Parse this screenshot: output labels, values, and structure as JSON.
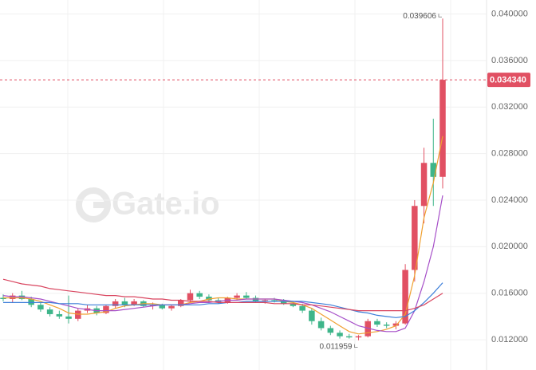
{
  "chart_data": {
    "type": "candlestick",
    "watermark": "Gate.io",
    "up_color": "#e15063",
    "down_color": "#3eb58a",
    "ylim": [
      0.0094,
      0.0412
    ],
    "yticks": [
      {
        "value": 0.012,
        "label": "0.012000"
      },
      {
        "value": 0.016,
        "label": "0.016000"
      },
      {
        "value": 0.02,
        "label": "0.020000"
      },
      {
        "value": 0.024,
        "label": "0.024000"
      },
      {
        "value": 0.028,
        "label": "0.028000"
      },
      {
        "value": 0.032,
        "label": "0.032000"
      },
      {
        "value": 0.036,
        "label": "0.036000"
      },
      {
        "value": 0.04,
        "label": "0.040000"
      }
    ],
    "grid": true,
    "last_price": {
      "value": 0.03434,
      "label": "0.034340"
    },
    "annotations": [
      {
        "value": 0.039606,
        "label": "0.039606",
        "index": 47
      },
      {
        "value": 0.011959,
        "label": "0.011959",
        "index": 38
      }
    ],
    "candles": [
      [
        0.0156,
        0.0159,
        0.0153,
        0.0155
      ],
      [
        0.0155,
        0.016,
        0.0152,
        0.0158
      ],
      [
        0.0158,
        0.0162,
        0.0154,
        0.0155
      ],
      [
        0.0155,
        0.0157,
        0.0148,
        0.015
      ],
      [
        0.015,
        0.0152,
        0.0144,
        0.0146
      ],
      [
        0.0146,
        0.0148,
        0.014,
        0.0142
      ],
      [
        0.0142,
        0.0145,
        0.0138,
        0.014
      ],
      [
        0.014,
        0.0158,
        0.0134,
        0.0138
      ],
      [
        0.0138,
        0.0147,
        0.0136,
        0.0145
      ],
      [
        0.0145,
        0.015,
        0.0143,
        0.0147
      ],
      [
        0.0147,
        0.0149,
        0.0141,
        0.0143
      ],
      [
        0.0143,
        0.015,
        0.0142,
        0.0149
      ],
      [
        0.0149,
        0.0155,
        0.0147,
        0.0153
      ],
      [
        0.0153,
        0.0156,
        0.0148,
        0.015
      ],
      [
        0.015,
        0.0155,
        0.0149,
        0.0153
      ],
      [
        0.0153,
        0.0154,
        0.0148,
        0.0149
      ],
      [
        0.0149,
        0.0152,
        0.0146,
        0.015
      ],
      [
        0.015,
        0.0151,
        0.0146,
        0.0147
      ],
      [
        0.0147,
        0.015,
        0.0145,
        0.0149
      ],
      [
        0.0149,
        0.0155,
        0.0148,
        0.0154
      ],
      [
        0.0154,
        0.0163,
        0.0152,
        0.016
      ],
      [
        0.016,
        0.0162,
        0.0155,
        0.0157
      ],
      [
        0.0157,
        0.0159,
        0.0152,
        0.0154
      ],
      [
        0.0154,
        0.0156,
        0.0151,
        0.0152
      ],
      [
        0.0152,
        0.0157,
        0.0151,
        0.0156
      ],
      [
        0.0156,
        0.016,
        0.0154,
        0.0158
      ],
      [
        0.0158,
        0.0161,
        0.0155,
        0.0156
      ],
      [
        0.0156,
        0.0158,
        0.0152,
        0.0153
      ],
      [
        0.0153,
        0.0155,
        0.0151,
        0.0154
      ],
      [
        0.0154,
        0.0156,
        0.0152,
        0.0153
      ],
      [
        0.0153,
        0.0155,
        0.015,
        0.0151
      ],
      [
        0.0151,
        0.0153,
        0.0148,
        0.0149
      ],
      [
        0.0149,
        0.0151,
        0.0143,
        0.0145
      ],
      [
        0.0145,
        0.0147,
        0.0133,
        0.0136
      ],
      [
        0.0136,
        0.0139,
        0.0128,
        0.013
      ],
      [
        0.013,
        0.0132,
        0.0124,
        0.0126
      ],
      [
        0.0126,
        0.0128,
        0.0121,
        0.0123
      ],
      [
        0.0123,
        0.0125,
        0.0121,
        0.0122
      ],
      [
        0.0122,
        0.0124,
        0.011959,
        0.0123
      ],
      [
        0.0123,
        0.0138,
        0.0122,
        0.0136
      ],
      [
        0.0136,
        0.0138,
        0.0131,
        0.0133
      ],
      [
        0.0133,
        0.0135,
        0.013,
        0.0132
      ],
      [
        0.0132,
        0.0136,
        0.0129,
        0.0134
      ],
      [
        0.0134,
        0.0185,
        0.0133,
        0.018
      ],
      [
        0.018,
        0.024,
        0.017,
        0.0235
      ],
      [
        0.0235,
        0.0285,
        0.022,
        0.0272
      ],
      [
        0.0272,
        0.031,
        0.0235,
        0.026
      ],
      [
        0.026,
        0.039606,
        0.025,
        0.03434
      ]
    ],
    "series": [
      {
        "color": "#f0a030",
        "values": [
          0.0156,
          0.0156,
          0.0156,
          0.0155,
          0.0153,
          0.015,
          0.0147,
          0.0143,
          0.0142,
          0.0142,
          0.0143,
          0.0144,
          0.0147,
          0.0149,
          0.015,
          0.0151,
          0.0151,
          0.015,
          0.015,
          0.015,
          0.0152,
          0.0153,
          0.0155,
          0.0156,
          0.0156,
          0.0155,
          0.0155,
          0.0155,
          0.0155,
          0.0155,
          0.0153,
          0.0152,
          0.015,
          0.0147,
          0.0142,
          0.0137,
          0.0132,
          0.0127,
          0.0125,
          0.0126,
          0.0127,
          0.0129,
          0.0132,
          0.0142,
          0.0175,
          0.0225,
          0.0255,
          0.0295
        ]
      },
      {
        "color": "#a64fc8",
        "values": [
          0.0158,
          0.0157,
          0.0157,
          0.0156,
          0.0155,
          0.0153,
          0.0151,
          0.0149,
          0.0147,
          0.0146,
          0.0145,
          0.0145,
          0.0145,
          0.0146,
          0.0147,
          0.0148,
          0.0149,
          0.015,
          0.015,
          0.015,
          0.0151,
          0.0152,
          0.0152,
          0.0153,
          0.0154,
          0.0154,
          0.0155,
          0.0155,
          0.0155,
          0.0155,
          0.0154,
          0.0153,
          0.0152,
          0.015,
          0.0147,
          0.0144,
          0.014,
          0.0136,
          0.0132,
          0.013,
          0.0128,
          0.0127,
          0.0127,
          0.013,
          0.0145,
          0.017,
          0.02,
          0.0244
        ]
      },
      {
        "color": "#3d7fd9",
        "values": [
          0.0152,
          0.0152,
          0.0152,
          0.0152,
          0.0152,
          0.0152,
          0.0151,
          0.0151,
          0.0151,
          0.015,
          0.015,
          0.015,
          0.015,
          0.015,
          0.015,
          0.015,
          0.015,
          0.015,
          0.015,
          0.015,
          0.015,
          0.015,
          0.0151,
          0.0151,
          0.0152,
          0.0152,
          0.0153,
          0.0153,
          0.0153,
          0.0153,
          0.0153,
          0.0153,
          0.0153,
          0.0152,
          0.0151,
          0.015,
          0.0148,
          0.0146,
          0.0144,
          0.0143,
          0.0141,
          0.014,
          0.0139,
          0.014,
          0.0145,
          0.0152,
          0.016,
          0.0169
        ]
      },
      {
        "color": "#d9455f",
        "values": [
          0.0172,
          0.017,
          0.0168,
          0.0167,
          0.0166,
          0.0164,
          0.0163,
          0.0162,
          0.0161,
          0.016,
          0.0159,
          0.0158,
          0.0158,
          0.0157,
          0.0157,
          0.0156,
          0.0155,
          0.0155,
          0.0154,
          0.0154,
          0.0153,
          0.0153,
          0.0153,
          0.0152,
          0.0152,
          0.0152,
          0.0152,
          0.0152,
          0.0152,
          0.0151,
          0.0151,
          0.0151,
          0.015,
          0.015,
          0.0149,
          0.0148,
          0.0147,
          0.0146,
          0.0145,
          0.0145,
          0.0145,
          0.0145,
          0.0145,
          0.0145,
          0.0147,
          0.015,
          0.0155,
          0.016
        ]
      }
    ]
  }
}
